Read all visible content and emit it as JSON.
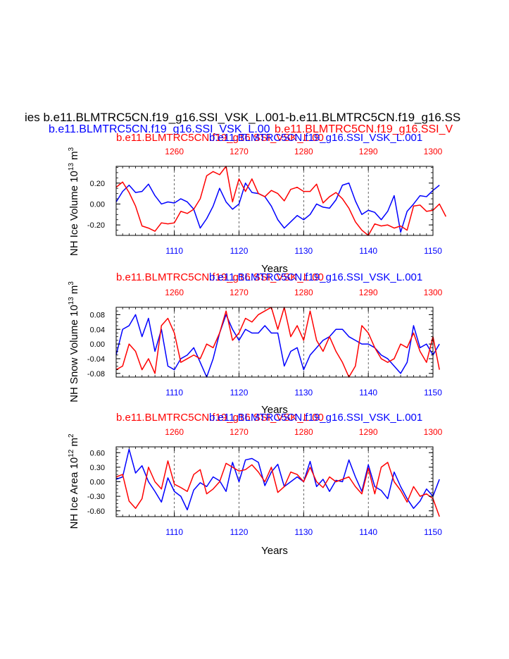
{
  "figure": {
    "title_line1": "ies b.e11.BLMTRC5CN.f19_g16.SSI_VSK_L.001-b.e11.BLMTRC5CN.f19_g16.SS",
    "title_line2_blue": "b.e11.BLMTRC5CN.f19_g16.SSI_VSK_L.00",
    "title_line2_red": "b.e11.BLMTRC5CN.f19_g16.SSI_V",
    "colors": {
      "red": "#ff0000",
      "blue": "#0000ff",
      "black": "#000000"
    }
  },
  "chart_data": [
    {
      "type": "line",
      "title_red": "b.e11.BLMTRC5CN.f19_g16.SSI_VSK_L.00",
      "title_blue": "b.e11.BLMTRC5CN.f19_g16.SSI_VSK_L.001",
      "ylabel_main": "NH Ice Volume 10",
      "ylabel_sup": "13",
      "ylabel_unit": " m",
      "ylabel_unit_sup": "3",
      "xlabel": "Years",
      "ylim": [
        -0.3,
        0.36
      ],
      "yticks": [
        -0.2,
        0.0,
        0.2
      ],
      "ytick_labels": [
        "-0.20",
        "0.00",
        "0.20"
      ],
      "bottom_axis": {
        "range": [
          1101,
          1150
        ],
        "ticks": [
          1110,
          1120,
          1130,
          1140,
          1150
        ],
        "labels": [
          "1110",
          "1120",
          "1130",
          "1140",
          "1150"
        ]
      },
      "top_axis": {
        "range": [
          1251,
          1300
        ],
        "ticks": [
          1260,
          1270,
          1280,
          1290,
          1300
        ],
        "labels": [
          "1260",
          "1270",
          "1280",
          "1290",
          "1300"
        ]
      },
      "series": [
        {
          "name": "b.e11.BLMTRC5CN.f19_g16.SSI_VSK_L.001",
          "color": "blue",
          "axis": "bottom",
          "x_start": 1101,
          "values": [
            0.02,
            0.12,
            0.18,
            0.11,
            0.12,
            0.19,
            0.08,
            0.0,
            0.02,
            0.01,
            0.05,
            0.02,
            -0.05,
            -0.23,
            -0.14,
            -0.02,
            0.15,
            0.02,
            -0.05,
            0.0,
            0.2,
            0.11,
            0.1,
            0.07,
            -0.02,
            -0.15,
            -0.23,
            -0.17,
            -0.11,
            -0.15,
            -0.1,
            0.0,
            -0.03,
            -0.04,
            0.04,
            0.18,
            0.2,
            0.03,
            -0.1,
            -0.06,
            -0.08,
            -0.15,
            -0.07,
            0.08,
            -0.27,
            -0.07,
            0.0,
            0.08,
            0.07,
            0.13,
            0.18
          ]
        },
        {
          "name": "b.e11.BLMTRC5CN.f19_g16.SSI_VSK_L.00",
          "color": "red",
          "axis": "top",
          "x_start": 1251,
          "values": [
            0.16,
            0.21,
            0.11,
            -0.02,
            -0.21,
            -0.23,
            -0.26,
            -0.18,
            -0.19,
            -0.18,
            -0.07,
            -0.09,
            -0.05,
            0.05,
            0.27,
            0.31,
            0.28,
            0.36,
            0.02,
            0.24,
            0.12,
            0.24,
            0.1,
            0.07,
            0.13,
            0.1,
            0.03,
            0.14,
            0.16,
            0.12,
            0.12,
            0.19,
            0.01,
            0.07,
            0.11,
            0.05,
            -0.04,
            -0.17,
            -0.25,
            -0.31,
            -0.19,
            -0.21,
            -0.2,
            -0.23,
            -0.21,
            -0.25,
            -0.02,
            -0.01,
            -0.07,
            -0.06,
            0.0,
            -0.12
          ]
        }
      ]
    },
    {
      "type": "line",
      "title_red": "b.e11.BLMTRC5CN.f19_g16.SSI_VSK_L.00",
      "title_blue": "b.e11.BLMTRC5CN.f19_g16.SSI_VSK_L.001",
      "ylabel_main": "NH Snow Volume 10",
      "ylabel_sup": "13",
      "ylabel_unit": " m",
      "ylabel_unit_sup": "3",
      "xlabel": "Years",
      "ylim": [
        -0.09,
        0.1
      ],
      "yticks": [
        -0.08,
        -0.04,
        0.0,
        0.04,
        0.08
      ],
      "ytick_labels": [
        "-0.08",
        "-0.04",
        "0.00",
        "0.04",
        "0.08"
      ],
      "bottom_axis": {
        "range": [
          1101,
          1150
        ],
        "ticks": [
          1110,
          1120,
          1130,
          1140,
          1150
        ],
        "labels": [
          "1110",
          "1120",
          "1130",
          "1140",
          "1150"
        ]
      },
      "top_axis": {
        "range": [
          1251,
          1300
        ],
        "ticks": [
          1260,
          1270,
          1280,
          1290,
          1300
        ],
        "labels": [
          "1260",
          "1270",
          "1280",
          "1290",
          "1300"
        ]
      },
      "series": [
        {
          "name": "b.e11.BLMTRC5CN.f19_g16.SSI_VSK_L.001",
          "color": "blue",
          "axis": "bottom",
          "x_start": 1101,
          "values": [
            -0.03,
            0.04,
            0.05,
            0.08,
            0.02,
            0.07,
            -0.02,
            0.04,
            -0.06,
            -0.07,
            -0.04,
            -0.03,
            -0.01,
            -0.05,
            -0.09,
            -0.04,
            0.03,
            0.08,
            0.04,
            0.01,
            0.04,
            0.03,
            0.03,
            0.05,
            0.03,
            0.03,
            -0.06,
            -0.02,
            -0.01,
            -0.07,
            -0.03,
            -0.01,
            0.01,
            0.02,
            0.04,
            0.04,
            0.02,
            0.01,
            0.0,
            0.0,
            -0.01,
            -0.03,
            -0.04,
            -0.06,
            -0.08,
            -0.05,
            0.05,
            -0.01,
            0.0,
            -0.03,
            0.0
          ]
        },
        {
          "name": "b.e11.BLMTRC5CN.f19_g16.SSI_VSK_L.00",
          "color": "red",
          "axis": "top",
          "x_start": 1251,
          "values": [
            -0.07,
            -0.06,
            0.0,
            -0.02,
            -0.07,
            -0.04,
            -0.08,
            0.05,
            0.07,
            0.03,
            -0.05,
            -0.04,
            -0.03,
            -0.04,
            0.0,
            -0.01,
            0.03,
            0.09,
            0.01,
            0.03,
            0.07,
            0.06,
            0.08,
            0.09,
            0.1,
            0.04,
            0.1,
            0.02,
            0.05,
            0.01,
            0.09,
            0.01,
            -0.02,
            0.02,
            -0.02,
            -0.05,
            -0.09,
            -0.06,
            0.05,
            0.03,
            -0.01,
            -0.04,
            -0.05,
            -0.04,
            0.0,
            -0.01,
            0.03,
            -0.02,
            -0.05,
            0.02,
            -0.07
          ]
        }
      ]
    },
    {
      "type": "line",
      "title_red": "b.e11.BLMTRC5CN.f19_g16.SSI_VSK_L.00",
      "title_blue": "b.e11.BLMTRC5CN.f19_g16.SSI_VSK_L.001",
      "ylabel_main": "NH Ice Area 10",
      "ylabel_sup": "12",
      "ylabel_unit": " m",
      "ylabel_unit_sup": "2",
      "xlabel": "Years",
      "ylim": [
        -0.72,
        0.72
      ],
      "yticks": [
        -0.6,
        -0.3,
        0.0,
        0.3,
        0.6
      ],
      "ytick_labels": [
        "-0.60",
        "-0.30",
        "0.00",
        "0.30",
        "0.60"
      ],
      "bottom_axis": {
        "range": [
          1101,
          1150
        ],
        "ticks": [
          1110,
          1120,
          1130,
          1140,
          1150
        ],
        "labels": [
          "1110",
          "1120",
          "1130",
          "1140",
          "1150"
        ]
      },
      "top_axis": {
        "range": [
          1251,
          1300
        ],
        "ticks": [
          1260,
          1270,
          1280,
          1290,
          1300
        ],
        "labels": [
          "1260",
          "1270",
          "1280",
          "1290",
          "1300"
        ]
      },
      "series": [
        {
          "name": "b.e11.BLMTRC5CN.f19_g16.SSI_VSK_L.001",
          "color": "blue",
          "axis": "bottom",
          "x_start": 1101,
          "values": [
            0.05,
            0.1,
            0.67,
            0.18,
            0.33,
            0.0,
            -0.2,
            -0.42,
            0.08,
            -0.2,
            -0.3,
            -0.58,
            -0.17,
            -0.02,
            -0.1,
            0.1,
            0.02,
            -0.2,
            0.4,
            0.0,
            0.45,
            0.48,
            0.4,
            -0.08,
            0.2,
            0.36,
            -0.1,
            0.0,
            0.1,
            0.0,
            0.42,
            -0.1,
            0.05,
            -0.2,
            0.03,
            0.0,
            0.45,
            0.1,
            -0.2,
            0.35,
            -0.1,
            -0.18,
            -0.35,
            0.2,
            -0.1,
            -0.35,
            -0.55,
            -0.4,
            -0.15,
            -0.3,
            0.05
          ]
        },
        {
          "name": "b.e11.BLMTRC5CN.f19_g16.SSI_VSK_L.00",
          "color": "red",
          "axis": "top",
          "x_start": 1251,
          "values": [
            0.1,
            0.15,
            -0.4,
            -0.55,
            -0.35,
            0.3,
            0.0,
            -0.15,
            0.43,
            -0.05,
            -0.12,
            -0.2,
            0.15,
            0.25,
            -0.25,
            -0.15,
            0.0,
            0.38,
            0.3,
            0.22,
            0.25,
            0.35,
            0.2,
            0.0,
            0.3,
            -0.22,
            -0.1,
            0.2,
            0.15,
            0.0,
            0.3,
            0.0,
            -0.12,
            0.1,
            0.0,
            0.05,
            0.1,
            -0.1,
            -0.25,
            0.28,
            -0.25,
            0.3,
            0.4,
            0.0,
            -0.18,
            -0.42,
            -0.1,
            -0.3,
            -0.25,
            -0.35,
            -0.73
          ]
        }
      ]
    }
  ]
}
